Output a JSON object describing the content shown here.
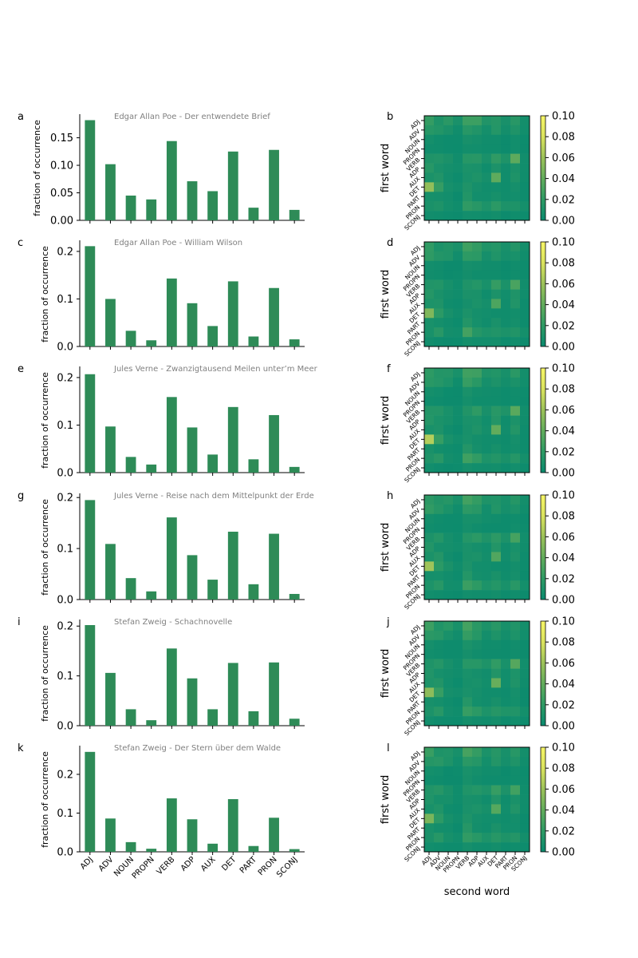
{
  "categories": [
    "ADJ",
    "ADV",
    "NOUN",
    "PROPN",
    "VERB",
    "ADP",
    "AUX",
    "DET",
    "PART",
    "PRON",
    "SCONJ"
  ],
  "bar_ylabel": "fraction of occurrence",
  "heatmap_ylabel": "first word",
  "heatmap_xlabel": "second word",
  "colorbar": {
    "range": [
      0,
      0.1
    ],
    "ticks": [
      "0.00",
      "0.02",
      "0.04",
      "0.06",
      "0.08",
      "0.10"
    ]
  },
  "colors": {
    "bar": "#2e8b57",
    "cmap": [
      "#0a8a6e",
      "#2e9a64",
      "#62ac5c",
      "#9cc25a",
      "#dae35e",
      "#f6f566"
    ],
    "title": "#808080"
  },
  "chart_data": [
    {
      "type": "bar",
      "panel": "a",
      "title": "Edgar Allan Poe - Der entwendete Brief",
      "ylim": [
        0,
        0.19
      ],
      "yticks": [
        "0.00",
        "0.05",
        "0.10",
        "0.15"
      ],
      "ytick_values": [
        0,
        0.05,
        0.1,
        0.15
      ],
      "values": [
        0.182,
        0.102,
        0.045,
        0.038,
        0.144,
        0.071,
        0.053,
        0.125,
        0.023,
        0.128,
        0.019
      ]
    },
    {
      "type": "heatmap",
      "panel": "b",
      "seed": 1
    },
    {
      "type": "bar",
      "panel": "c",
      "title": "Edgar Allan Poe - William Wilson",
      "ylim": [
        0,
        0.22
      ],
      "yticks": [
        "0.0",
        "0.1",
        "0.2"
      ],
      "ytick_values": [
        0,
        0.1,
        0.2
      ],
      "values": [
        0.211,
        0.1,
        0.033,
        0.013,
        0.143,
        0.091,
        0.043,
        0.137,
        0.021,
        0.123,
        0.015
      ]
    },
    {
      "type": "heatmap",
      "panel": "d",
      "seed": 2
    },
    {
      "type": "bar",
      "panel": "e",
      "title": "Jules Verne - Zwanzigtausend Meilen unter’m Meer",
      "ylim": [
        0,
        0.22
      ],
      "yticks": [
        "0.0",
        "0.1",
        "0.2"
      ],
      "ytick_values": [
        0,
        0.1,
        0.2
      ],
      "values": [
        0.207,
        0.097,
        0.033,
        0.017,
        0.159,
        0.095,
        0.038,
        0.138,
        0.028,
        0.121,
        0.012
      ]
    },
    {
      "type": "heatmap",
      "panel": "f",
      "seed": 3
    },
    {
      "type": "bar",
      "panel": "g",
      "title": "Jules Verne - Reise nach dem Mittelpunkt der Erde",
      "ylim": [
        0,
        0.205
      ],
      "yticks": [
        "0.0",
        "0.1",
        "0.2"
      ],
      "ytick_values": [
        0,
        0.1,
        0.2
      ],
      "values": [
        0.195,
        0.109,
        0.042,
        0.016,
        0.161,
        0.087,
        0.039,
        0.133,
        0.03,
        0.129,
        0.011
      ]
    },
    {
      "type": "heatmap",
      "panel": "h",
      "seed": 4
    },
    {
      "type": "bar",
      "panel": "i",
      "title": "Stefan Zweig - Schachnovelle",
      "ylim": [
        0,
        0.21
      ],
      "yticks": [
        "0.0",
        "0.1",
        "0.2"
      ],
      "ytick_values": [
        0,
        0.1,
        0.2
      ],
      "values": [
        0.202,
        0.106,
        0.033,
        0.011,
        0.155,
        0.095,
        0.033,
        0.126,
        0.029,
        0.127,
        0.014
      ]
    },
    {
      "type": "heatmap",
      "panel": "j",
      "seed": 5
    },
    {
      "type": "bar",
      "panel": "k",
      "title": "Stefan Zweig - Der Stern über dem Walde",
      "ylim": [
        0,
        0.27
      ],
      "yticks": [
        "0.0",
        "0.1",
        "0.2"
      ],
      "ytick_values": [
        0,
        0.1,
        0.2
      ],
      "values": [
        0.258,
        0.086,
        0.025,
        0.008,
        0.138,
        0.084,
        0.021,
        0.136,
        0.015,
        0.088,
        0.007
      ]
    },
    {
      "type": "heatmap",
      "panel": "l",
      "seed": 6
    }
  ]
}
